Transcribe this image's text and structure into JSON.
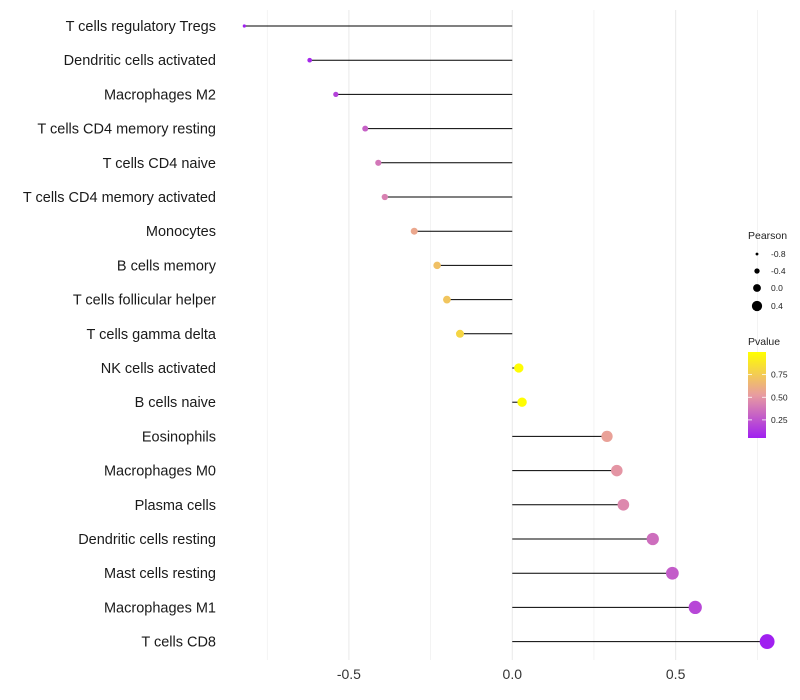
{
  "chart_data": {
    "type": "lollipop",
    "title": "",
    "xlabel": "",
    "ylabel": "",
    "xlim": [
      -0.87,
      0.85
    ],
    "x_ticks": [
      -0.5,
      0.0,
      0.5
    ],
    "x_tick_labels": [
      "-0.5",
      "0.0",
      "0.5"
    ],
    "grid": true,
    "categories": [
      "T cells regulatory  Tregs",
      "Dendritic cells activated",
      "Macrophages M2",
      "T cells CD4 memory resting",
      "T cells CD4 naive",
      "T cells CD4 memory activated",
      "Monocytes",
      "B cells memory",
      "T cells follicular helper",
      "T cells gamma delta",
      "NK cells activated",
      "B cells naive",
      "Eosinophils",
      "Macrophages M0",
      "Plasma cells",
      "Dendritic cells resting",
      "Mast cells resting",
      "Macrophages M1",
      "T cells CD8"
    ],
    "values": [
      -0.82,
      -0.62,
      -0.54,
      -0.45,
      -0.41,
      -0.39,
      -0.3,
      -0.23,
      -0.2,
      -0.16,
      0.02,
      0.03,
      0.29,
      0.32,
      0.34,
      0.43,
      0.49,
      0.56,
      0.78
    ],
    "pvalues": [
      0.02,
      0.08,
      0.18,
      0.3,
      0.38,
      0.42,
      0.58,
      0.7,
      0.72,
      0.8,
      0.99,
      0.99,
      0.55,
      0.5,
      0.45,
      0.35,
      0.28,
      0.2,
      0.05
    ],
    "legend": {
      "size_title": "Pearson",
      "size_labels": [
        "-0.8",
        "-0.4",
        "0.0",
        "0.4"
      ],
      "size_values": [
        -0.8,
        -0.4,
        0.0,
        0.4
      ],
      "color_title": "Pvalue",
      "color_labels": [
        "0.75",
        "0.50",
        "0.25"
      ],
      "color_values": [
        0.75,
        0.5,
        0.25
      ],
      "color_range": [
        0.05,
        1.0
      ],
      "placement": "right"
    },
    "colors": {
      "low": "#a020f0",
      "mid": "#e89ca0",
      "high": "#ffff00",
      "segment": "#000000",
      "grid": "#ebebeb"
    }
  }
}
